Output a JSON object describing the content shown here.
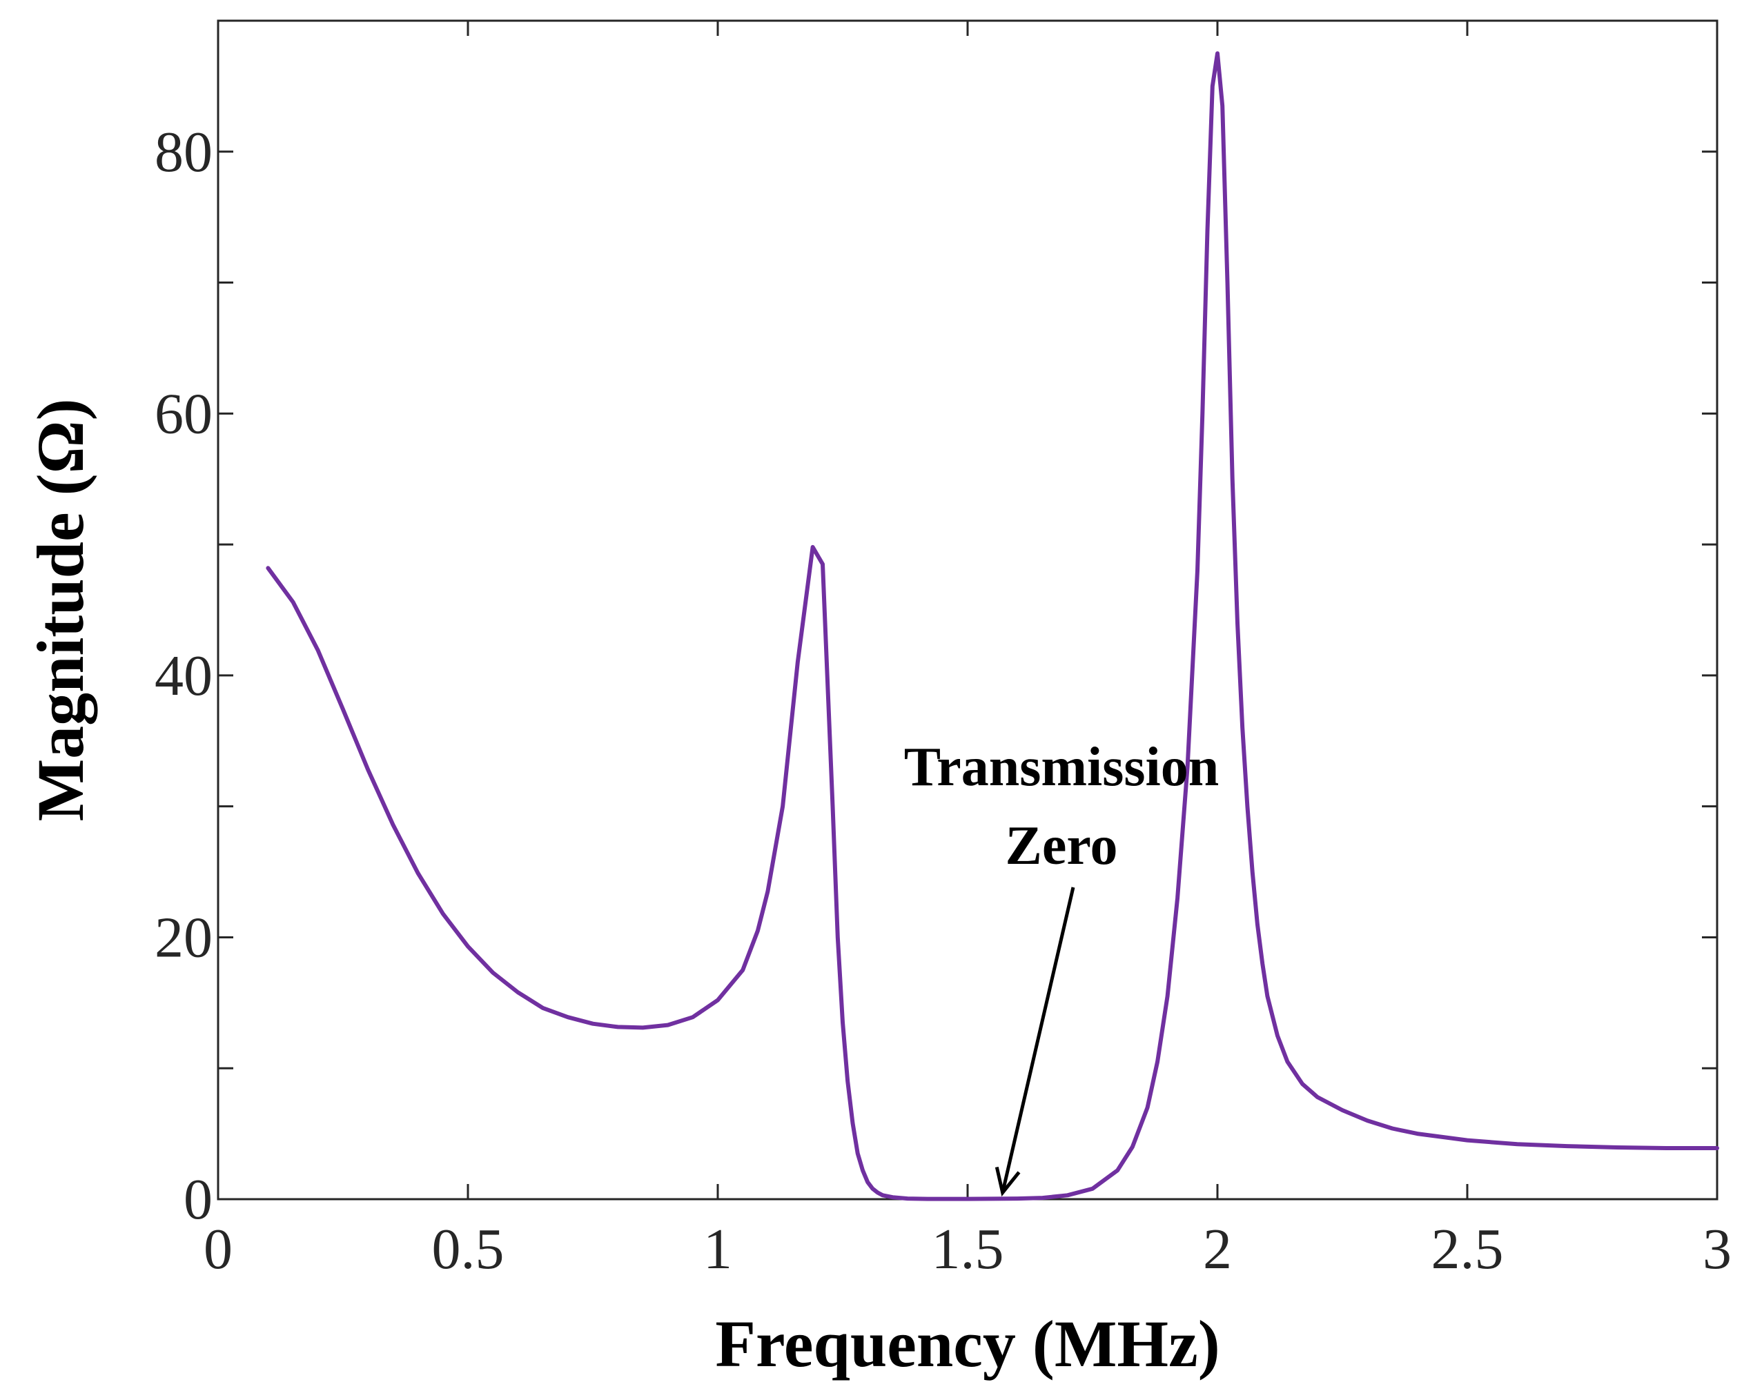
{
  "chart_data": {
    "type": "line",
    "title": "",
    "xlabel": "Frequency (MHz)",
    "ylabel": "Magnitude (Ω)",
    "xlim": [
      0,
      3
    ],
    "ylim": [
      0,
      90
    ],
    "xticks": [
      0,
      0.5,
      1,
      1.5,
      2,
      2.5,
      3
    ],
    "xtick_labels": [
      "0",
      "0.5",
      "1",
      "1.5",
      "2",
      "2.5",
      "3"
    ],
    "yticks": [
      0,
      20,
      40,
      60,
      80
    ],
    "ytick_labels": [
      "0",
      "20",
      "40",
      "60",
      "80"
    ],
    "yminor_ticks": [
      10,
      30,
      50,
      70
    ],
    "grid": false,
    "series": [
      {
        "name": "Magnitude",
        "color": "#7030a0",
        "x": [
          0.1,
          0.15,
          0.2,
          0.25,
          0.3,
          0.35,
          0.4,
          0.45,
          0.5,
          0.55,
          0.6,
          0.65,
          0.7,
          0.75,
          0.8,
          0.85,
          0.9,
          0.95,
          1.0,
          1.05,
          1.08,
          1.1,
          1.13,
          1.16,
          1.19,
          1.21,
          1.23,
          1.24,
          1.25,
          1.26,
          1.27,
          1.28,
          1.29,
          1.3,
          1.31,
          1.32,
          1.33,
          1.35,
          1.38,
          1.42,
          1.45,
          1.5,
          1.55,
          1.6,
          1.65,
          1.7,
          1.75,
          1.8,
          1.83,
          1.86,
          1.88,
          1.9,
          1.92,
          1.94,
          1.96,
          1.97,
          1.98,
          1.99,
          2.0,
          2.01,
          2.02,
          2.03,
          2.04,
          2.05,
          2.06,
          2.07,
          2.08,
          2.09,
          2.1,
          2.12,
          2.14,
          2.17,
          2.2,
          2.25,
          2.3,
          2.35,
          2.4,
          2.5,
          2.6,
          2.7,
          2.8,
          2.9,
          3.0
        ],
        "y": [
          48.2,
          45.6,
          41.9,
          37.4,
          32.8,
          28.6,
          24.9,
          21.8,
          19.3,
          17.3,
          15.8,
          14.6,
          13.9,
          13.4,
          13.15,
          13.1,
          13.3,
          13.9,
          15.2,
          17.5,
          20.5,
          23.5,
          30.0,
          41.0,
          49.8,
          48.5,
          30.0,
          20.0,
          13.5,
          9.0,
          5.8,
          3.5,
          2.2,
          1.3,
          0.8,
          0.5,
          0.3,
          0.15,
          0.05,
          0.02,
          0.02,
          0.02,
          0.03,
          0.05,
          0.1,
          0.3,
          0.8,
          2.2,
          4.0,
          7.0,
          10.5,
          15.5,
          23.0,
          33.0,
          48.0,
          60.0,
          74.0,
          85.0,
          87.5,
          83.5,
          70.0,
          55.0,
          44.0,
          36.0,
          30.0,
          25.0,
          21.0,
          18.0,
          15.5,
          12.5,
          10.5,
          8.8,
          7.8,
          6.8,
          6.0,
          5.4,
          5.0,
          4.5,
          4.2,
          4.05,
          3.95,
          3.9,
          3.9
        ]
      }
    ],
    "annotation": {
      "line1": "Transmission",
      "line2": "Zero",
      "arrow_target": [
        1.57,
        0.5
      ]
    }
  }
}
